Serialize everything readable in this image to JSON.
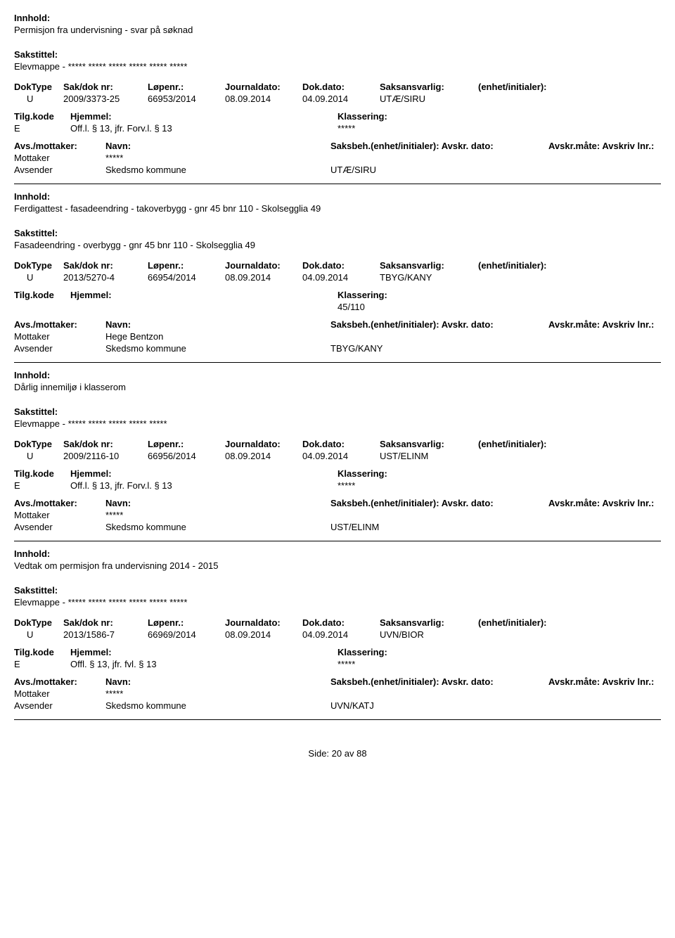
{
  "labels": {
    "innhold": "Innhold:",
    "sakstittel": "Sakstittel:",
    "doktype": "DokType",
    "saknr": "Sak/dok nr:",
    "lopenr": "Løpenr.:",
    "journaldato": "Journaldato:",
    "dokdato": "Dok.dato:",
    "saksansvarlig": "Saksansvarlig:",
    "enhet": "(enhet/initialer):",
    "tilgkode": "Tilg.kode",
    "hjemmel": "Hjemmel:",
    "klassering": "Klassering:",
    "avsmottaker": "Avs./mottaker:",
    "navn": "Navn:",
    "saksbeh": "Saksbeh.(enhet/initialer):",
    "avskrdato": "Avskr. dato:",
    "avskrmate": "Avskr.måte:",
    "avskrivlnr": "Avskriv lnr.:",
    "mottaker": "Mottaker",
    "avsender": "Avsender"
  },
  "records": [
    {
      "innhold": "Permisjon fra undervisning - svar på søknad",
      "sakstittel": "Elevmappe - ***** ***** ***** ***** ***** *****",
      "doktype": "U",
      "saknr": "2009/3373-25",
      "lopenr": "66953/2014",
      "journaldato": "08.09.2014",
      "dokdato": "04.09.2014",
      "saksansvarlig": "UTÆ/SIRU",
      "tilgkode": "E",
      "hjemmel": "Off.l. § 13, jfr. Forv.l. § 13",
      "klassering": "*****",
      "mottaker_navn": "*****",
      "avsender_navn": "Skedsmo kommune",
      "avsender_unit": "UTÆ/SIRU"
    },
    {
      "innhold": "Ferdigattest - fasadeendring - takoverbygg - gnr 45 bnr 110 - Skolsegglia 49",
      "sakstittel": "Fasadeendring - overbygg - gnr 45 bnr 110 - Skolsegglia 49",
      "doktype": "U",
      "saknr": "2013/5270-4",
      "lopenr": "66954/2014",
      "journaldato": "08.09.2014",
      "dokdato": "04.09.2014",
      "saksansvarlig": "TBYG/KANY",
      "tilgkode": "",
      "hjemmel": "",
      "klassering": "45/110",
      "mottaker_navn": "Hege Bentzon",
      "avsender_navn": "Skedsmo kommune",
      "avsender_unit": "TBYG/KANY"
    },
    {
      "innhold": "Dårlig innemiljø i klasserom",
      "sakstittel": "Elevmappe - ***** ***** ***** ***** *****",
      "doktype": "U",
      "saknr": "2009/2116-10",
      "lopenr": "66956/2014",
      "journaldato": "08.09.2014",
      "dokdato": "04.09.2014",
      "saksansvarlig": "UST/ELINM",
      "tilgkode": "E",
      "hjemmel": "Off.l. § 13, jfr. Forv.l. § 13",
      "klassering": "*****",
      "mottaker_navn": "*****",
      "avsender_navn": "Skedsmo kommune",
      "avsender_unit": "UST/ELINM"
    },
    {
      "innhold": "Vedtak om permisjon fra undervisning 2014 - 2015",
      "sakstittel": "Elevmappe - ***** ***** ***** ***** ***** *****",
      "doktype": "U",
      "saknr": "2013/1586-7",
      "lopenr": "66969/2014",
      "journaldato": "08.09.2014",
      "dokdato": "04.09.2014",
      "saksansvarlig": "UVN/BIOR",
      "tilgkode": "E",
      "hjemmel": "Offl. § 13, jfr. fvl. § 13",
      "klassering": "*****",
      "mottaker_navn": "*****",
      "avsender_navn": "Skedsmo kommune",
      "avsender_unit": "UVN/KATJ"
    }
  ],
  "footer": {
    "side": "Side:",
    "page": "20",
    "av": "av",
    "total": "88"
  }
}
